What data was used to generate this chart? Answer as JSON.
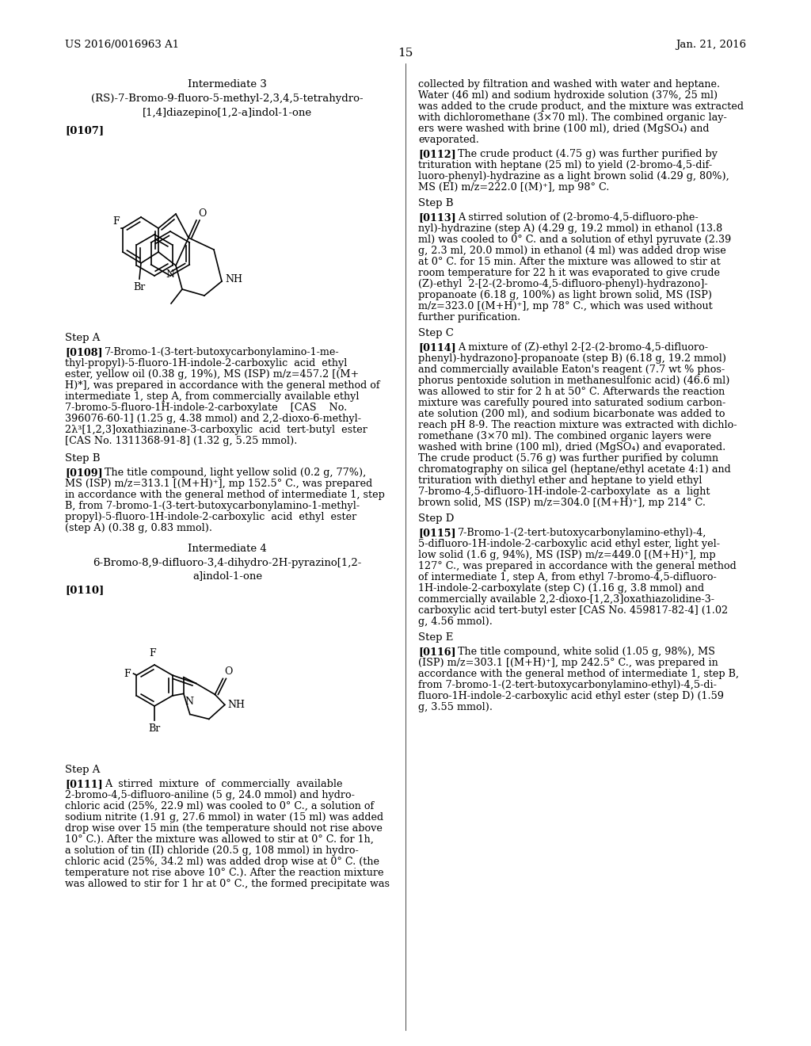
{
  "page_number": "15",
  "patent_number": "US 2016/0016963 A1",
  "patent_date": "Jan. 21, 2016",
  "background_color": "#ffffff"
}
